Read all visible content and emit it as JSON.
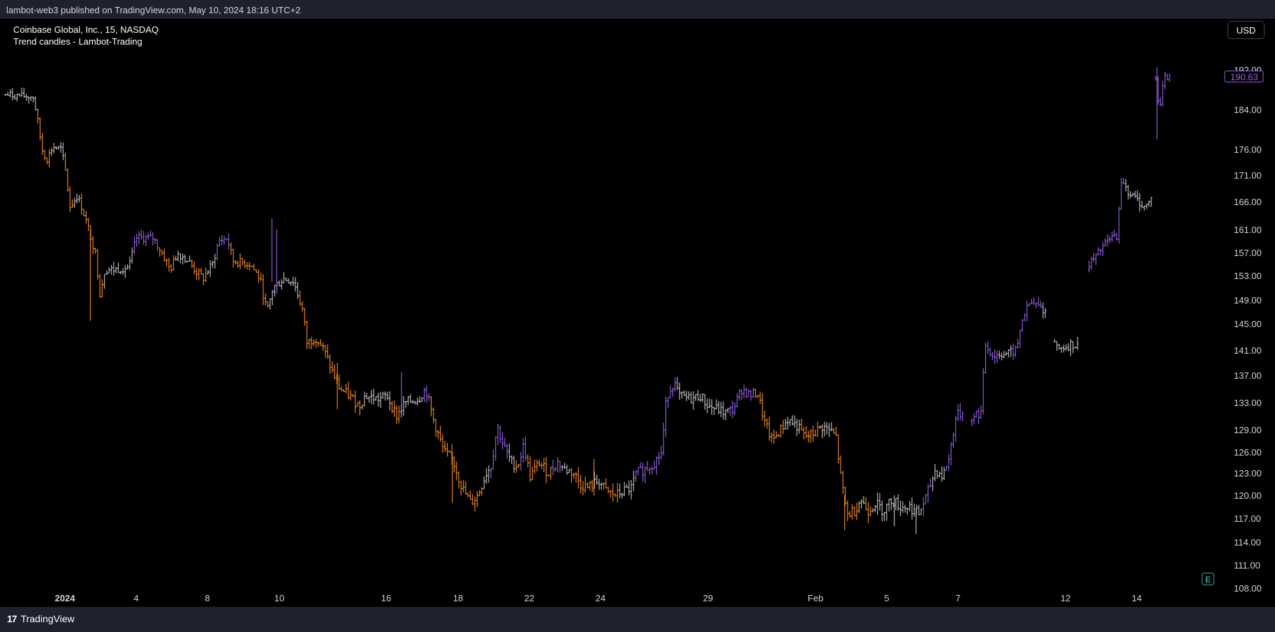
{
  "header": {
    "published": "lambot-web3 published on TradingView.com, May 10, 2024 18:16 UTC+2"
  },
  "legend": {
    "symbol": "Coinbase Global, Inc., 15, NASDAQ",
    "indicator": "Trend candles - Lambot-Trading"
  },
  "currency": "USD",
  "footer": {
    "brand": "TradingView",
    "logo_mark": "17"
  },
  "earnings_marker": "E",
  "colors": {
    "bear": "#e8821e",
    "bull": "#8d5bd9",
    "neutral": "#b8b8b8",
    "price_label": "#9c5fe0"
  },
  "chart_data": {
    "type": "ohlc",
    "ylim": [
      108,
      195
    ],
    "y_ticks": [
      "192.00",
      "184.00",
      "176.00",
      "171.00",
      "166.00",
      "161.00",
      "157.00",
      "153.00",
      "149.00",
      "145.00",
      "141.00",
      "137.00",
      "133.00",
      "129.00",
      "126.00",
      "123.00",
      "120.00",
      "117.00",
      "114.00",
      "111.00",
      "108.00"
    ],
    "x_ticks": [
      "2024",
      "4",
      "8",
      "10",
      "16",
      "18",
      "22",
      "24",
      "29",
      "Feb",
      "5",
      "7",
      "12",
      "14"
    ],
    "last_price": "190.63",
    "price_path": [
      {
        "x": 0.0,
        "y": 187.0,
        "s": "neutral"
      },
      {
        "x": 2.3,
        "y": 186.5,
        "s": "neutral"
      },
      {
        "x": 2.7,
        "y": 181.0,
        "s": "bear"
      },
      {
        "x": 3.0,
        "y": 176.0,
        "s": "bear"
      },
      {
        "x": 3.4,
        "y": 174.0,
        "s": "bear"
      },
      {
        "x": 3.9,
        "y": 176.5,
        "s": "neutral"
      },
      {
        "x": 4.6,
        "y": 176.0,
        "s": "neutral"
      },
      {
        "x": 5.0,
        "y": 171.0,
        "s": "bear"
      },
      {
        "x": 5.3,
        "y": 165.0,
        "s": "bear"
      },
      {
        "x": 5.9,
        "y": 167.0,
        "s": "neutral"
      },
      {
        "x": 6.3,
        "y": 165.0,
        "s": "bear"
      },
      {
        "x": 7.0,
        "y": 160.0,
        "s": "bear"
      },
      {
        "x": 7.4,
        "y": 157.0,
        "s": "bear"
      },
      {
        "x": 7.8,
        "y": 150.0,
        "s": "bear"
      },
      {
        "x": 8.2,
        "y": 154.0,
        "s": "neutral"
      },
      {
        "x": 9.0,
        "y": 154.0,
        "s": "neutral"
      },
      {
        "x": 10.2,
        "y": 154.5,
        "s": "neutral"
      },
      {
        "x": 10.8,
        "y": 159.5,
        "s": "bull"
      },
      {
        "x": 12.2,
        "y": 159.5,
        "s": "bull"
      },
      {
        "x": 12.9,
        "y": 157.0,
        "s": "bear"
      },
      {
        "x": 13.6,
        "y": 154.0,
        "s": "bear"
      },
      {
        "x": 14.2,
        "y": 157.0,
        "s": "neutral"
      },
      {
        "x": 15.1,
        "y": 155.5,
        "s": "neutral"
      },
      {
        "x": 15.6,
        "y": 154.0,
        "s": "bear"
      },
      {
        "x": 16.3,
        "y": 152.5,
        "s": "bear"
      },
      {
        "x": 17.1,
        "y": 155.0,
        "s": "neutral"
      },
      {
        "x": 17.6,
        "y": 159.0,
        "s": "bull"
      },
      {
        "x": 18.3,
        "y": 159.5,
        "s": "bull"
      },
      {
        "x": 18.8,
        "y": 155.5,
        "s": "bear"
      },
      {
        "x": 20.2,
        "y": 155.0,
        "s": "bear"
      },
      {
        "x": 21.0,
        "y": 152.5,
        "s": "bear"
      },
      {
        "x": 21.6,
        "y": 147.0,
        "s": "bear"
      },
      {
        "x": 22.1,
        "y": 151.0,
        "s": "neutral"
      },
      {
        "x": 23.0,
        "y": 152.5,
        "s": "neutral"
      },
      {
        "x": 23.8,
        "y": 152.0,
        "s": "neutral"
      },
      {
        "x": 24.5,
        "y": 147.5,
        "s": "bear"
      },
      {
        "x": 24.9,
        "y": 142.0,
        "s": "bear"
      },
      {
        "x": 25.6,
        "y": 143.0,
        "s": "bear"
      },
      {
        "x": 26.3,
        "y": 141.0,
        "s": "bear"
      },
      {
        "x": 27.0,
        "y": 137.5,
        "s": "bear"
      },
      {
        "x": 27.6,
        "y": 135.0,
        "s": "bear"
      },
      {
        "x": 28.4,
        "y": 134.0,
        "s": "bear"
      },
      {
        "x": 29.2,
        "y": 132.5,
        "s": "bear"
      },
      {
        "x": 29.7,
        "y": 134.0,
        "s": "neutral"
      },
      {
        "x": 30.8,
        "y": 133.5,
        "s": "neutral"
      },
      {
        "x": 31.5,
        "y": 134.0,
        "s": "neutral"
      },
      {
        "x": 32.3,
        "y": 131.0,
        "s": "bear"
      },
      {
        "x": 33.0,
        "y": 133.0,
        "s": "neutral"
      },
      {
        "x": 34.1,
        "y": 133.5,
        "s": "neutral"
      },
      {
        "x": 34.7,
        "y": 135.0,
        "s": "bull"
      },
      {
        "x": 35.4,
        "y": 130.0,
        "s": "bear"
      },
      {
        "x": 36.2,
        "y": 126.0,
        "s": "bear"
      },
      {
        "x": 36.9,
        "y": 125.0,
        "s": "bear"
      },
      {
        "x": 37.7,
        "y": 121.0,
        "s": "bear"
      },
      {
        "x": 38.4,
        "y": 119.0,
        "s": "bear"
      },
      {
        "x": 39.0,
        "y": 120.0,
        "s": "bear"
      },
      {
        "x": 39.7,
        "y": 123.0,
        "s": "neutral"
      },
      {
        "x": 40.1,
        "y": 124.0,
        "s": "bull"
      },
      {
        "x": 40.6,
        "y": 129.5,
        "s": "bull"
      },
      {
        "x": 41.2,
        "y": 126.5,
        "s": "bull"
      },
      {
        "x": 41.8,
        "y": 124.5,
        "s": "neutral"
      },
      {
        "x": 42.3,
        "y": 124.0,
        "s": "bear"
      },
      {
        "x": 42.8,
        "y": 127.0,
        "s": "bull"
      },
      {
        "x": 43.3,
        "y": 122.5,
        "s": "bear"
      },
      {
        "x": 44.1,
        "y": 124.5,
        "s": "bear"
      },
      {
        "x": 44.8,
        "y": 123.0,
        "s": "bear"
      },
      {
        "x": 45.6,
        "y": 124.5,
        "s": "bull"
      },
      {
        "x": 46.2,
        "y": 123.5,
        "s": "neutral"
      },
      {
        "x": 46.9,
        "y": 123.0,
        "s": "bear"
      },
      {
        "x": 47.5,
        "y": 121.5,
        "s": "bear"
      },
      {
        "x": 48.1,
        "y": 121.0,
        "s": "bear"
      },
      {
        "x": 49.0,
        "y": 122.0,
        "s": "neutral"
      },
      {
        "x": 49.6,
        "y": 120.5,
        "s": "bear"
      },
      {
        "x": 50.4,
        "y": 120.0,
        "s": "bear"
      },
      {
        "x": 51.0,
        "y": 120.5,
        "s": "neutral"
      },
      {
        "x": 51.7,
        "y": 121.0,
        "s": "neutral"
      },
      {
        "x": 52.1,
        "y": 123.0,
        "s": "bull"
      },
      {
        "x": 52.8,
        "y": 123.5,
        "s": "bull"
      },
      {
        "x": 53.6,
        "y": 124.5,
        "s": "bull"
      },
      {
        "x": 54.2,
        "y": 126.0,
        "s": "bull"
      },
      {
        "x": 54.6,
        "y": 134.0,
        "s": "bull"
      },
      {
        "x": 55.2,
        "y": 136.0,
        "s": "bull"
      },
      {
        "x": 55.6,
        "y": 134.0,
        "s": "neutral"
      },
      {
        "x": 56.6,
        "y": 133.5,
        "s": "neutral"
      },
      {
        "x": 57.4,
        "y": 134.0,
        "s": "neutral"
      },
      {
        "x": 58.0,
        "y": 132.5,
        "s": "neutral"
      },
      {
        "x": 58.8,
        "y": 132.0,
        "s": "neutral"
      },
      {
        "x": 59.4,
        "y": 131.5,
        "s": "neutral"
      },
      {
        "x": 60.1,
        "y": 132.0,
        "s": "bull"
      },
      {
        "x": 60.8,
        "y": 135.0,
        "s": "bull"
      },
      {
        "x": 61.5,
        "y": 134.0,
        "s": "bull"
      },
      {
        "x": 62.1,
        "y": 134.5,
        "s": "bear"
      },
      {
        "x": 62.7,
        "y": 130.0,
        "s": "bear"
      },
      {
        "x": 63.3,
        "y": 127.5,
        "s": "bear"
      },
      {
        "x": 64.0,
        "y": 129.0,
        "s": "bear"
      },
      {
        "x": 64.6,
        "y": 130.5,
        "s": "neutral"
      },
      {
        "x": 65.4,
        "y": 129.5,
        "s": "neutral"
      },
      {
        "x": 66.0,
        "y": 128.0,
        "s": "bear"
      },
      {
        "x": 66.8,
        "y": 128.5,
        "s": "bear"
      },
      {
        "x": 67.4,
        "y": 129.5,
        "s": "neutral"
      },
      {
        "x": 68.0,
        "y": 129.0,
        "s": "neutral"
      },
      {
        "x": 68.6,
        "y": 128.0,
        "s": "bear"
      },
      {
        "x": 69.0,
        "y": 122.0,
        "s": "bear"
      },
      {
        "x": 69.5,
        "y": 117.5,
        "s": "bear"
      },
      {
        "x": 70.1,
        "y": 118.0,
        "s": "bear"
      },
      {
        "x": 70.6,
        "y": 119.5,
        "s": "neutral"
      },
      {
        "x": 71.2,
        "y": 118.0,
        "s": "bear"
      },
      {
        "x": 71.8,
        "y": 119.0,
        "s": "neutral"
      },
      {
        "x": 72.5,
        "y": 118.0,
        "s": "neutral"
      },
      {
        "x": 73.2,
        "y": 119.5,
        "s": "neutral"
      },
      {
        "x": 73.9,
        "y": 118.5,
        "s": "neutral"
      },
      {
        "x": 74.7,
        "y": 118.5,
        "s": "neutral"
      },
      {
        "x": 75.4,
        "y": 117.5,
        "s": "neutral"
      },
      {
        "x": 76.1,
        "y": 120.0,
        "s": "bull"
      },
      {
        "x": 76.8,
        "y": 123.5,
        "s": "neutral"
      },
      {
        "x": 77.4,
        "y": 122.5,
        "s": "neutral"
      },
      {
        "x": 77.9,
        "y": 125.0,
        "s": "bull"
      },
      {
        "x": 78.5,
        "y": 131.0,
        "s": "bull"
      },
      {
        "x": 79.0,
        "y": 131.5,
        "s": "bull"
      },
      {
        "x": 79.8,
        "y": 131.0,
        "s": "bull"
      },
      {
        "x": 80.6,
        "y": 131.5,
        "s": "bull"
      },
      {
        "x": 80.9,
        "y": 142.0,
        "s": "bull"
      },
      {
        "x": 81.6,
        "y": 140.0,
        "s": "bull"
      },
      {
        "x": 82.2,
        "y": 140.5,
        "s": "neutral"
      },
      {
        "x": 82.9,
        "y": 140.5,
        "s": "neutral"
      },
      {
        "x": 83.5,
        "y": 141.0,
        "s": "bull"
      },
      {
        "x": 84.0,
        "y": 146.0,
        "s": "bull"
      },
      {
        "x": 84.6,
        "y": 148.5,
        "s": "bull"
      },
      {
        "x": 85.3,
        "y": 148.0,
        "s": "bull"
      },
      {
        "x": 85.9,
        "y": 147.0,
        "s": "neutral"
      },
      {
        "x": 86.4,
        "y": 148.0,
        "s": "neutral"
      },
      {
        "x": 86.7,
        "y": 141.0,
        "s": "neutral"
      },
      {
        "x": 87.4,
        "y": 141.5,
        "s": "neutral"
      },
      {
        "x": 88.1,
        "y": 142.0,
        "s": "neutral"
      },
      {
        "x": 88.6,
        "y": 141.5,
        "s": "neutral"
      },
      {
        "x": 89.1,
        "y": 140.0,
        "s": "bear"
      },
      {
        "x": 89.4,
        "y": 155.0,
        "s": "bull"
      },
      {
        "x": 90.0,
        "y": 156.0,
        "s": "bull"
      },
      {
        "x": 90.6,
        "y": 158.0,
        "s": "bull"
      },
      {
        "x": 91.3,
        "y": 159.5,
        "s": "bull"
      },
      {
        "x": 91.8,
        "y": 160.0,
        "s": "bull"
      },
      {
        "x": 92.2,
        "y": 170.5,
        "s": "bull"
      },
      {
        "x": 92.8,
        "y": 167.5,
        "s": "neutral"
      },
      {
        "x": 93.4,
        "y": 166.5,
        "s": "neutral"
      },
      {
        "x": 94.0,
        "y": 165.0,
        "s": "neutral"
      },
      {
        "x": 94.6,
        "y": 166.0,
        "s": "neutral"
      },
      {
        "x": 95.0,
        "y": 190.0,
        "s": "bull"
      },
      {
        "x": 95.3,
        "y": 184.0,
        "s": "bull"
      },
      {
        "x": 95.7,
        "y": 190.5,
        "s": "bull"
      },
      {
        "x": 96.3,
        "y": 190.6,
        "s": "bull"
      }
    ]
  }
}
